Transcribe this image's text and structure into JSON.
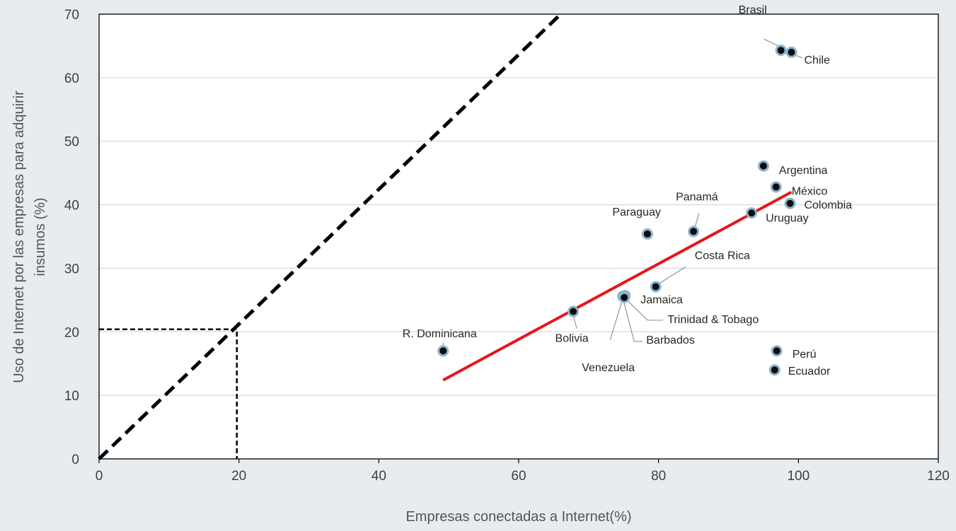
{
  "chart_data": {
    "type": "scatter",
    "xlabel": "Empresas conectadas a Internet(%)",
    "ylabel_lines": [
      "Uso de Internet por las empresas para adquirir",
      "insumos (%)"
    ],
    "xlim": [
      0,
      120
    ],
    "ylim": [
      0,
      70
    ],
    "xticks": [
      0,
      20,
      40,
      60,
      80,
      100,
      120
    ],
    "yticks": [
      0,
      10,
      20,
      30,
      40,
      50,
      60,
      70
    ],
    "grid": "horizontal",
    "points": [
      {
        "label": "Brasil",
        "x": 97.5,
        "y": 64.3
      },
      {
        "label": "Chile",
        "x": 99.0,
        "y": 64.0
      },
      {
        "label": "Argentina",
        "x": 95.0,
        "y": 46.1
      },
      {
        "label": "México",
        "x": 96.8,
        "y": 42.8
      },
      {
        "label": "Colombia",
        "x": 98.8,
        "y": 40.2
      },
      {
        "label": "Uruguay",
        "x": 93.3,
        "y": 38.7
      },
      {
        "label": "Panamá",
        "x": 85.0,
        "y": 35.8
      },
      {
        "label": "Paraguay",
        "x": 78.4,
        "y": 35.4
      },
      {
        "label": "Costa Rica",
        "x": 79.6,
        "y": 27.1
      },
      {
        "label": "Jamaica",
        "x": 75.2,
        "y": 25.7
      },
      {
        "label": "Trinidad & Tobago",
        "x": 75.0,
        "y": 25.5
      },
      {
        "label": "Barbados",
        "x": 74.9,
        "y": 25.6
      },
      {
        "label": "Venezuela",
        "x": 75.1,
        "y": 25.4
      },
      {
        "label": "Bolivia",
        "x": 67.8,
        "y": 23.2
      },
      {
        "label": "R. Dominicana",
        "x": 49.2,
        "y": 17.0
      },
      {
        "label": "Perú",
        "x": 96.9,
        "y": 17.0
      },
      {
        "label": "Ecuador",
        "x": 96.6,
        "y": 14.0
      }
    ],
    "trend_line": {
      "color": "#e8151b",
      "x": [
        49.2,
        99.0
      ],
      "y": [
        12.4,
        42.0
      ]
    },
    "reference_line": {
      "style": "dashed",
      "color": "#000000",
      "x": [
        0,
        66
      ],
      "y": [
        0,
        70
      ]
    },
    "reference_marker": {
      "style": "dashed",
      "color": "#000000",
      "x": 19.7,
      "y": 20.4
    },
    "colors": {
      "point_fill": "#0b0b0b",
      "point_ring": "#8bb4cc",
      "background": "#e6ecef"
    }
  }
}
